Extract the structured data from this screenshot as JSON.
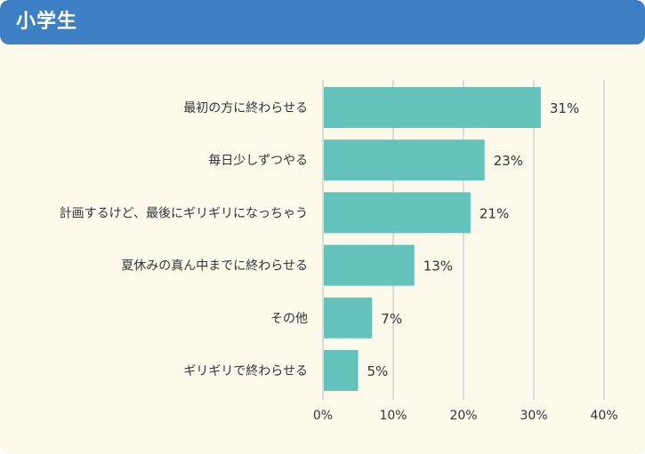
{
  "header": {
    "title": "小学生"
  },
  "colors": {
    "header": "#3d7fc4",
    "background": "#fdfaeb",
    "bar": "#63c2bb",
    "grid": "#dcdcd6",
    "text": "#333333"
  },
  "chart_data": {
    "type": "bar",
    "orientation": "horizontal",
    "categories": [
      "最初の方に終わらせる",
      "毎日少しずつやる",
      "計画するけど、最後にギリギリになっちゃう",
      "夏休みの真ん中までに終わらせる",
      "その他",
      "ギリギリで終わらせる"
    ],
    "values": [
      31,
      23,
      21,
      13,
      7,
      5
    ],
    "value_labels": [
      "31%",
      "23%",
      "21%",
      "13%",
      "7%",
      "5%"
    ],
    "xlim": [
      0,
      40
    ],
    "xticks": [
      0,
      10,
      20,
      30,
      40
    ],
    "xtick_labels": [
      "0%",
      "10%",
      "20%",
      "30%",
      "40%"
    ],
    "grid": true
  }
}
